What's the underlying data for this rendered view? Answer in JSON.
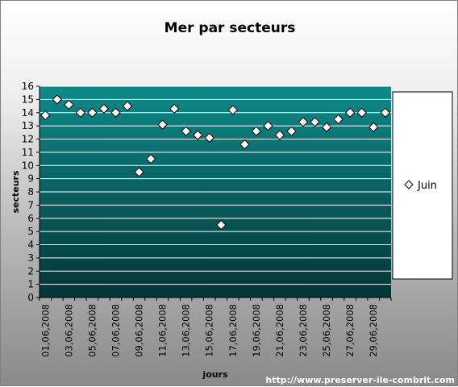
{
  "chart_data": {
    "type": "scatter",
    "title": "Mer par secteurs",
    "xlabel": "jours",
    "ylabel": "secteurs",
    "ylim": [
      0,
      16
    ],
    "yticks": [
      0,
      1,
      2,
      3,
      4,
      5,
      6,
      7,
      8,
      9,
      10,
      11,
      12,
      13,
      14,
      15,
      16
    ],
    "grid": true,
    "legend_position": "right",
    "x_tick_labels": [
      "01,06,2008",
      "03,06,2008",
      "05,06,2008",
      "07,06,2008",
      "09,06,2008",
      "11,06,2008",
      "13,06,2008",
      "15,06,2008",
      "17,06,2008",
      "19,06,2008",
      "21,06,2008",
      "23,06,2008",
      "25,06,2008",
      "27,06,2008",
      "29,06,2008"
    ],
    "categories": [
      "01,06,2008",
      "02,06,2008",
      "03,06,2008",
      "04,06,2008",
      "05,06,2008",
      "06,06,2008",
      "07,06,2008",
      "08,06,2008",
      "09,06,2008",
      "10,06,2008",
      "11,06,2008",
      "12,06,2008",
      "13,06,2008",
      "14,06,2008",
      "15,06,2008",
      "16,06,2008",
      "17,06,2008",
      "18,06,2008",
      "19,06,2008",
      "20,06,2008",
      "21,06,2008",
      "22,06,2008",
      "23,06,2008",
      "24,06,2008",
      "25,06,2008",
      "26,06,2008",
      "27,06,2008",
      "28,06,2008",
      "29,06,2008",
      "30,06,2008"
    ],
    "series": [
      {
        "name": "Juin",
        "values": [
          13.8,
          15.0,
          14.6,
          14.0,
          14.0,
          14.3,
          14.0,
          14.5,
          9.5,
          10.5,
          13.1,
          14.3,
          12.6,
          12.3,
          12.1,
          5.5,
          14.2,
          11.6,
          12.6,
          13.0,
          12.3,
          12.6,
          13.3,
          13.3,
          12.9,
          13.5,
          14.0,
          14.0,
          12.9,
          14.0
        ]
      }
    ],
    "colors": {
      "plot_top": "#0e8a8a",
      "plot_bottom": "#053535",
      "gridline": "#ffffff",
      "marker_fill": "#ffffff",
      "marker_stroke": "#000000"
    }
  },
  "footer": "http://www.preserver-ile-combrit.com"
}
